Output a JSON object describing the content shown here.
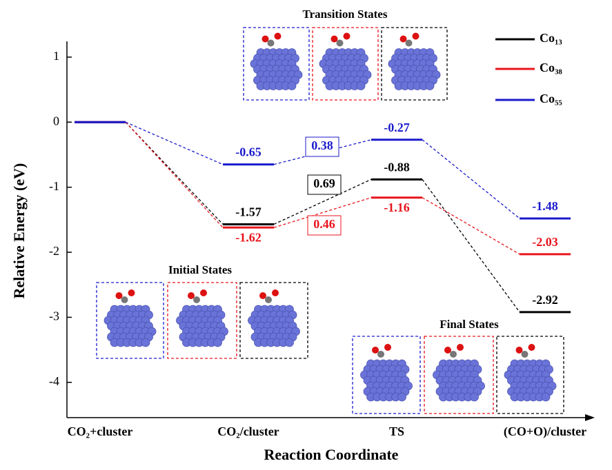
{
  "chart_data": {
    "type": "energy-profile",
    "y_label": "Relative Energy (eV)",
    "x_label": "Reaction Coordinate",
    "categories": [
      "CO₂+cluster",
      "CO₂/cluster",
      "TS",
      "(CO+O)/cluster"
    ],
    "ylim": [
      -4.5,
      1.2
    ],
    "yticks": [
      1,
      0,
      -1,
      -2,
      -3,
      -4
    ],
    "series": [
      {
        "name": "Co₁₃",
        "color": "#000000",
        "values": [
          0,
          -1.57,
          -0.88,
          -2.92
        ],
        "barrier": 0.69
      },
      {
        "name": "Co₃₈",
        "color": "#e8141c",
        "values": [
          0,
          -1.62,
          -1.16,
          -2.03
        ],
        "barrier": 0.46
      },
      {
        "name": "Co₅₅",
        "color": "#1a1acc",
        "values": [
          0,
          -0.65,
          -0.27,
          -1.48
        ],
        "barrier": 0.38
      }
    ],
    "annotations": [
      "Transition States",
      "Initial States",
      "Final States"
    ]
  }
}
